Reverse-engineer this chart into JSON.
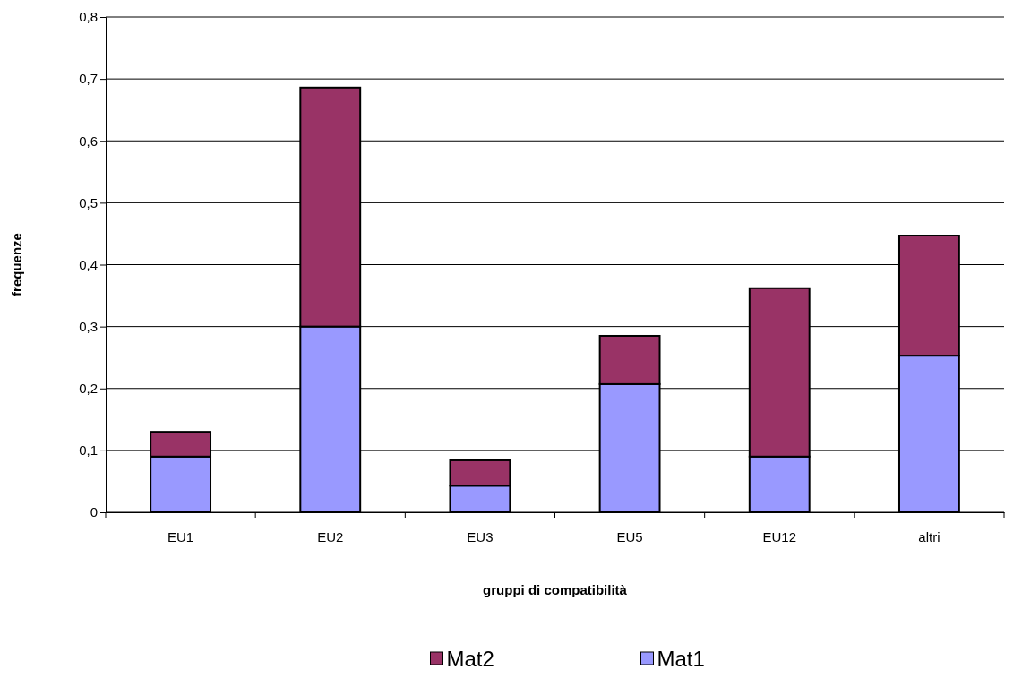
{
  "chart_data": {
    "type": "bar",
    "stacked": true,
    "xlabel": "gruppi di compatibilità",
    "ylabel": "frequenze",
    "categories": [
      "EU1",
      "EU2",
      "EU3",
      "EU5",
      "EU12",
      "altri"
    ],
    "series": [
      {
        "name": "Mat1",
        "color": "#9999ff",
        "values": [
          0.09,
          0.3,
          0.043,
          0.207,
          0.09,
          0.253
        ]
      },
      {
        "name": "Mat2",
        "color": "#993366",
        "values": [
          0.04,
          0.386,
          0.041,
          0.078,
          0.272,
          0.194
        ]
      }
    ],
    "ylim": [
      0,
      0.8
    ],
    "yticks": [
      0,
      {
        "value": 0.1,
        "label": "0,1"
      },
      {
        "value": 0.2,
        "label": "0,2"
      },
      {
        "value": 0.3,
        "label": "0,3"
      },
      {
        "value": 0.4,
        "label": "0,4"
      },
      {
        "value": 0.5,
        "label": "0,5"
      },
      {
        "value": 0.6,
        "label": "0,6"
      },
      {
        "value": 0.7,
        "label": "0,7"
      },
      {
        "value": 0.8,
        "label": "0,8"
      }
    ],
    "grid": "y",
    "legend": "bottom"
  }
}
